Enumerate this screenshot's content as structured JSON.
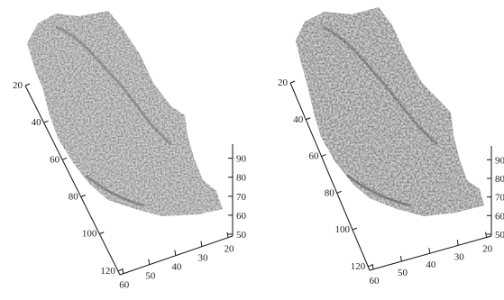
{
  "chart_data": [
    {
      "type": "surface",
      "title": "",
      "xlabel": "",
      "ylabel": "",
      "zlabel": "",
      "rows_ticks": [
        "20",
        "40",
        "60",
        "80",
        "100",
        "120"
      ],
      "cols_ticks": [
        "60",
        "50",
        "40",
        "30",
        "20"
      ],
      "z_ticks": [
        "50",
        "60",
        "70",
        "80",
        "90"
      ],
      "rows_range": [
        20,
        120
      ],
      "cols_range": [
        20,
        60
      ],
      "z_range": [
        50,
        95
      ],
      "grid": false,
      "colors": {
        "surface_light": "#d9d9d9",
        "surface_dark": "#555555",
        "axis": "#111111"
      }
    },
    {
      "type": "surface",
      "title": "",
      "xlabel": "",
      "ylabel": "",
      "zlabel": "",
      "rows_ticks": [
        "20",
        "40",
        "60",
        "80",
        "100",
        "120"
      ],
      "cols_ticks": [
        "60",
        "50",
        "40",
        "30",
        "20"
      ],
      "z_ticks": [
        "50",
        "60",
        "70",
        "80",
        "90"
      ],
      "rows_range": [
        20,
        120
      ],
      "cols_range": [
        20,
        60
      ],
      "z_range": [
        50,
        95
      ],
      "grid": false,
      "colors": {
        "surface_light": "#d9d9d9",
        "surface_dark": "#555555",
        "axis": "#111111"
      }
    }
  ]
}
